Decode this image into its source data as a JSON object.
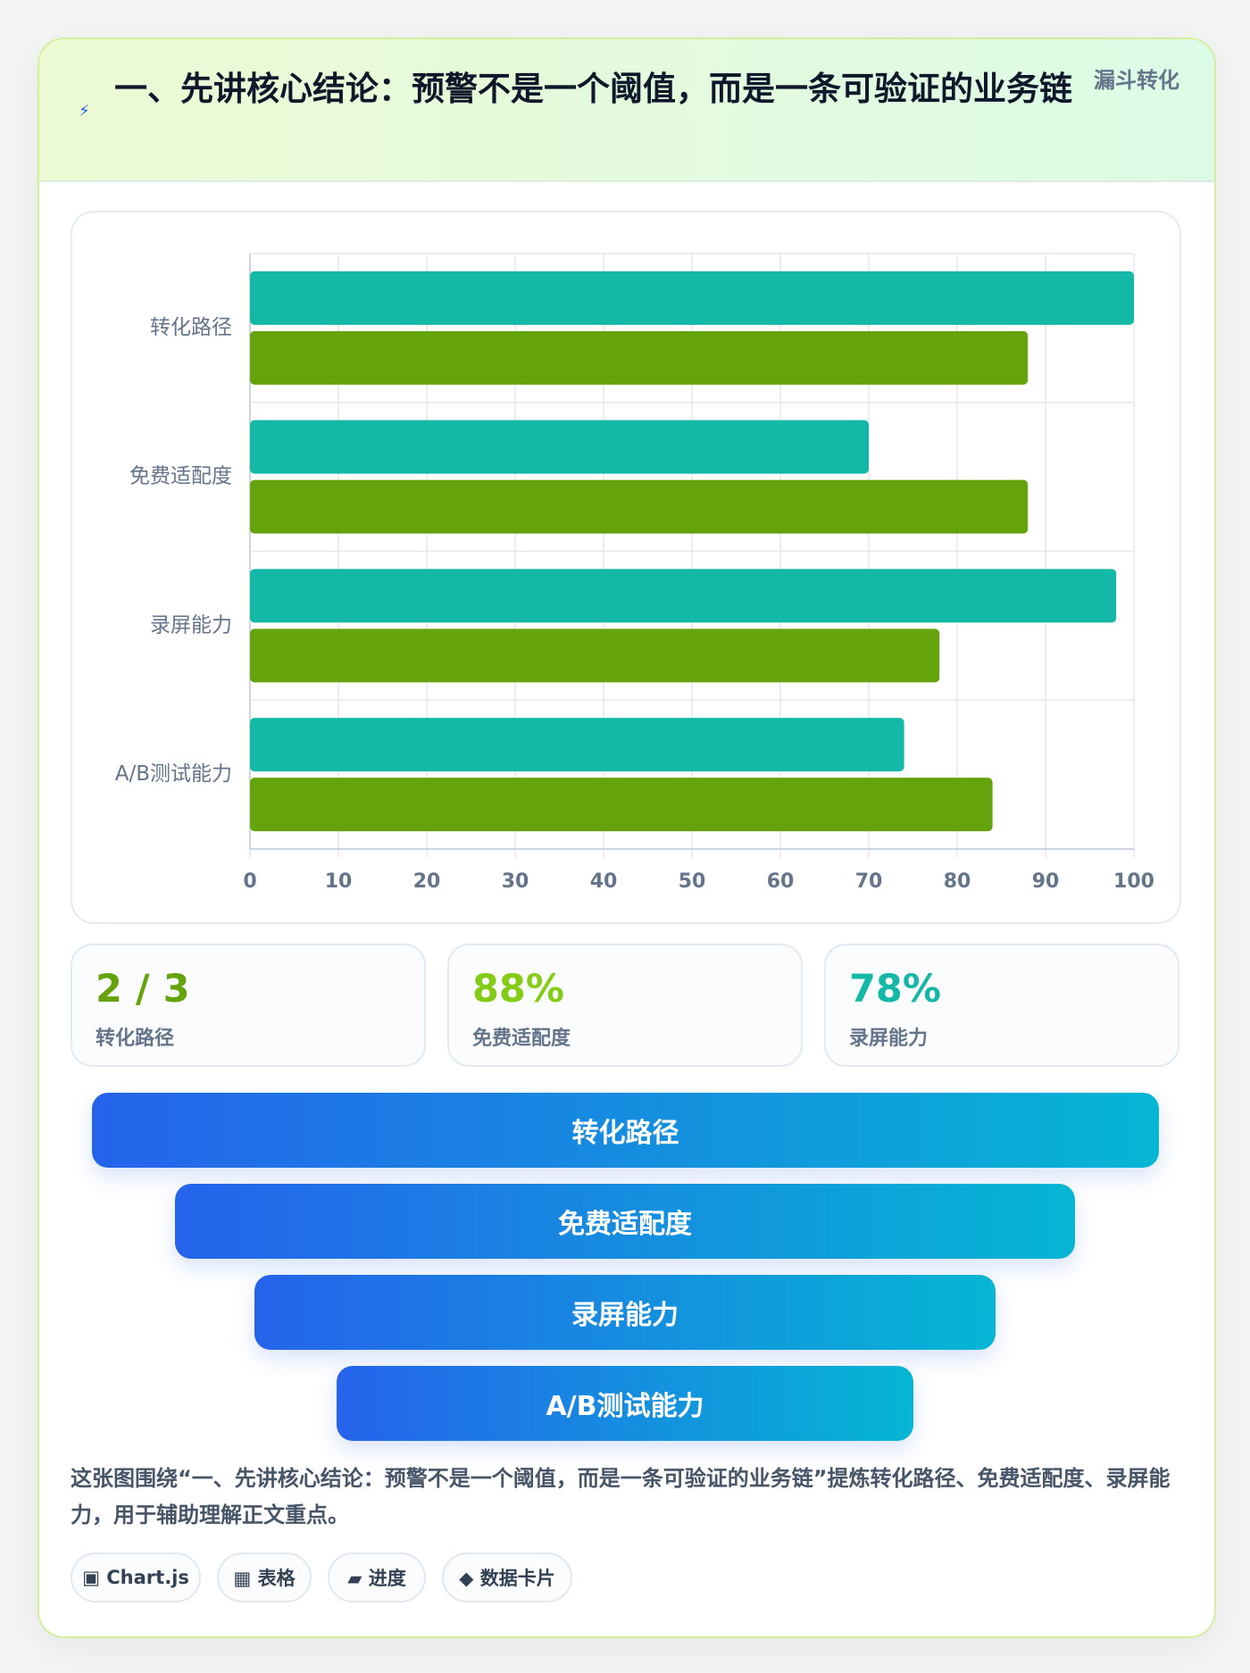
{
  "header": {
    "icon": "⚡",
    "title": "一、先讲核心结论：预警不是一个阈值，而是一条可验证的业务链",
    "tag": "漏斗转化"
  },
  "chart_data": {
    "type": "bar",
    "orientation": "horizontal",
    "categories": [
      "转化路径",
      "免费适配度",
      "录屏能力",
      "A/B测试能力"
    ],
    "series": [
      {
        "color": "#14b8a6",
        "values": [
          100,
          70,
          98,
          74
        ]
      },
      {
        "color": "#65a30d",
        "values": [
          88,
          88,
          78,
          84
        ]
      }
    ],
    "xlim": [
      0,
      100
    ],
    "xticks": [
      0,
      10,
      20,
      30,
      40,
      50,
      60,
      70,
      80,
      90,
      100
    ],
    "grid": true
  },
  "stats": [
    {
      "value": "2 / 3",
      "label": "转化路径",
      "color": "#65a30d"
    },
    {
      "value": "88%",
      "label": "免费适配度",
      "color": "#84cc16"
    },
    {
      "value": "78%",
      "label": "录屏能力",
      "color": "#14b8a6"
    }
  ],
  "funnel": [
    "转化路径",
    "免费适配度",
    "录屏能力",
    "A/B测试能力"
  ],
  "description": "这张图围绕“一、先讲核心结论：预警不是一个阈值，而是一条可验证的业务链”提炼转化路径、免费适配度、录屏能力，用于辅助理解正文重点。",
  "tags": [
    "▣ Chart.js",
    "▦ 表格",
    "▰ 进度",
    "◆ 数据卡片"
  ]
}
